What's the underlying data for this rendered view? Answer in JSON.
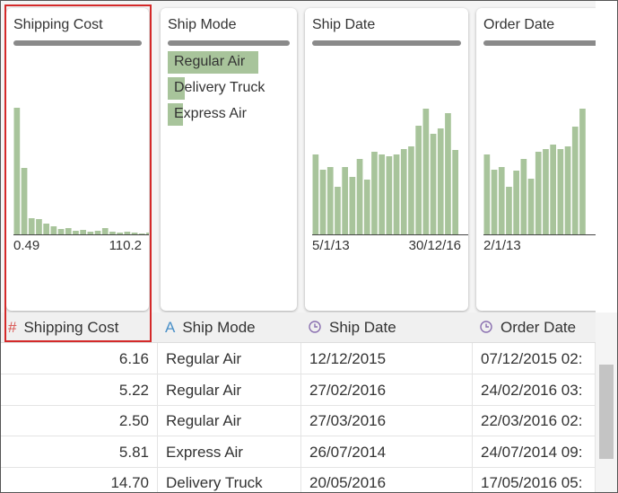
{
  "bar_color": "#a8c49b",
  "columns": [
    {
      "name": "Shipping Cost",
      "type_icon": "#",
      "summary": {
        "type": "histogram",
        "values": [
          141,
          74,
          18,
          17,
          12,
          9,
          6,
          7,
          4,
          5,
          3,
          4,
          7,
          3,
          2,
          3,
          2,
          1,
          2,
          1
        ],
        "min_label": "0.49",
        "max_label": "110.2"
      }
    },
    {
      "name": "Ship Mode",
      "type_icon": "A",
      "summary": {
        "type": "category",
        "categories": [
          "Regular Air",
          "Delivery Truck",
          "Express Air"
        ],
        "values": [
          101,
          19,
          17
        ]
      }
    },
    {
      "name": "Ship Date",
      "summary": {
        "type": "histogram",
        "values": [
          89,
          72,
          75,
          53,
          75,
          64,
          84,
          61,
          92,
          89,
          87,
          89,
          95,
          98,
          121,
          140,
          112,
          118,
          135,
          94
        ],
        "min_label": "5/1/13",
        "max_label": "30/12/16"
      }
    },
    {
      "name": "Order Date",
      "summary": {
        "type": "histogram",
        "values": [
          89,
          72,
          75,
          53,
          71,
          84,
          62,
          92,
          95,
          100,
          95,
          98,
          120,
          140
        ],
        "min_label": "2/1/13"
      }
    }
  ],
  "rows": [
    [
      "6.16",
      "Regular Air",
      "12/12/2015",
      "07/12/2015 02:"
    ],
    [
      "5.22",
      "Regular Air",
      "27/02/2016",
      "24/02/2016 03:"
    ],
    [
      "2.50",
      "Regular Air",
      "27/03/2016",
      "22/03/2016 02:"
    ],
    [
      "5.81",
      "Express Air",
      "26/07/2014",
      "24/07/2014 09:"
    ],
    [
      "14.70",
      "Delivery Truck",
      "20/05/2016",
      "17/05/2016 05:"
    ]
  ]
}
